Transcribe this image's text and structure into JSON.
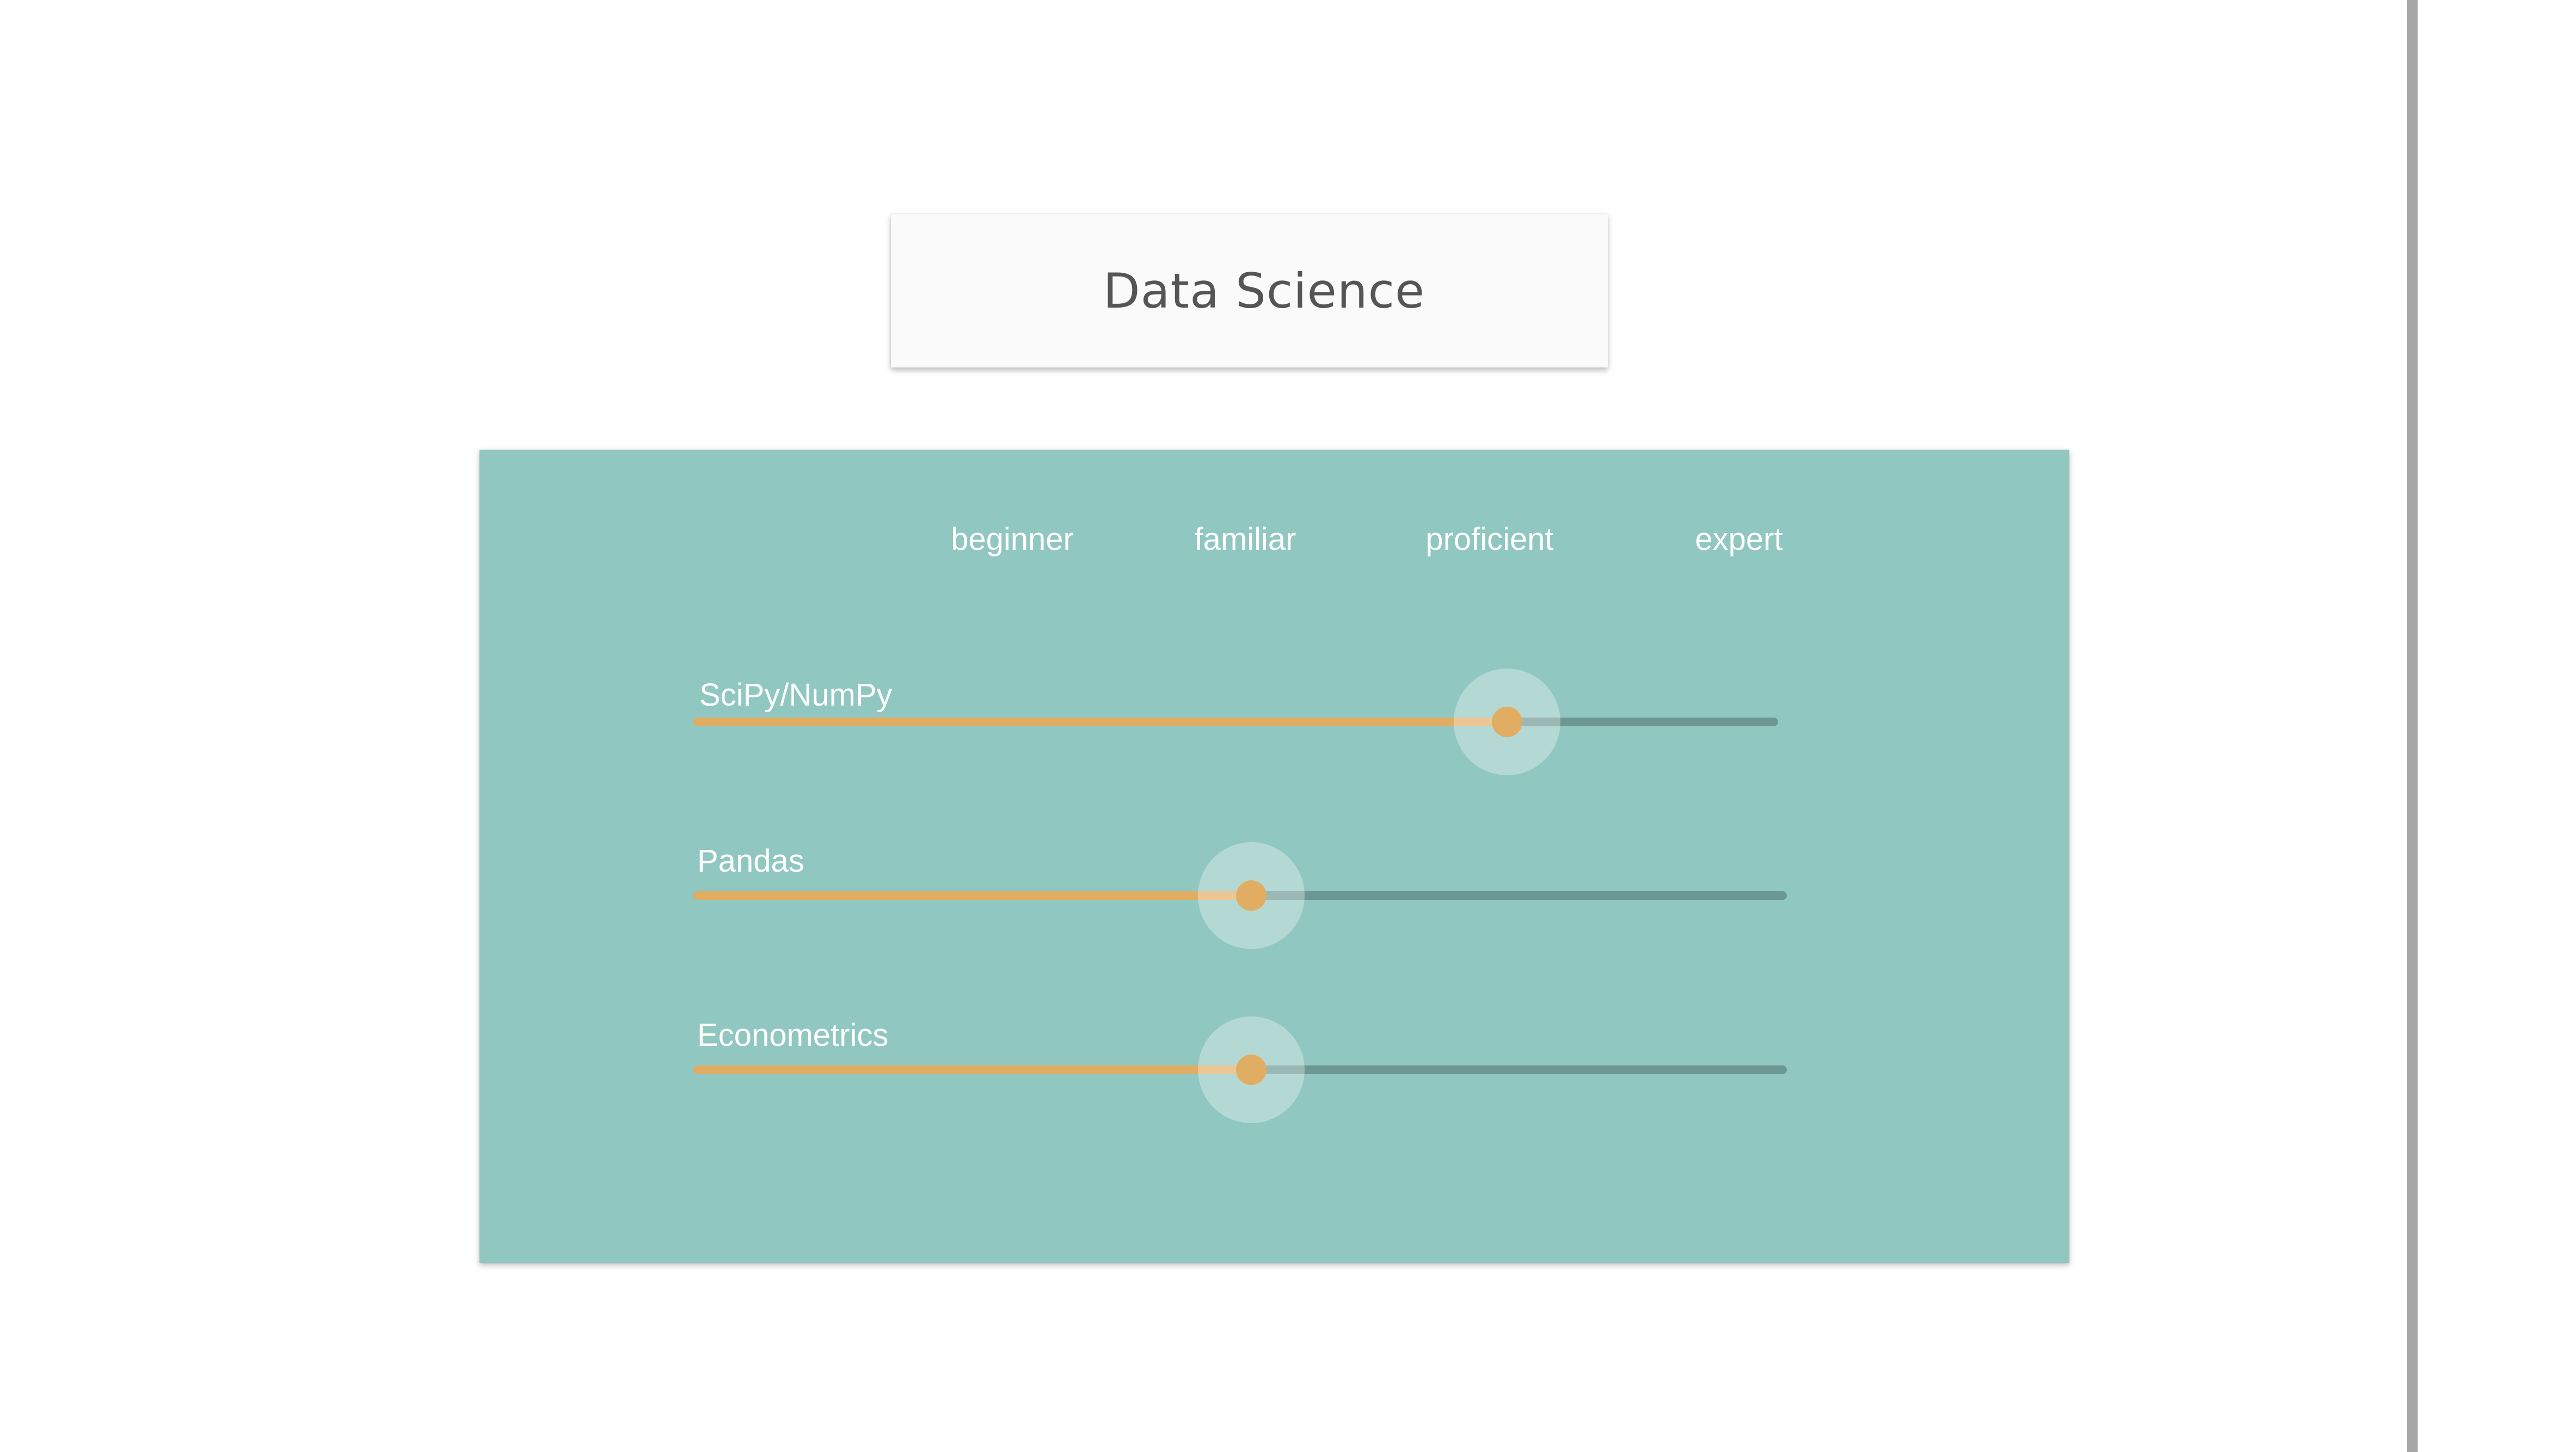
{
  "title": "Data Science",
  "levels": [
    "beginner",
    "familiar",
    "proficient",
    "expert"
  ],
  "skills": [
    {
      "name": "SciPy/NumPy",
      "value": 0.75
    },
    {
      "name": "Pandas",
      "value": 0.51
    },
    {
      "name": "Econometrics",
      "value": 0.51
    }
  ],
  "colors": {
    "panel": "#91c7c1",
    "fill": "#e1ad63",
    "track": "#6d9792",
    "title_text": "#555555"
  }
}
